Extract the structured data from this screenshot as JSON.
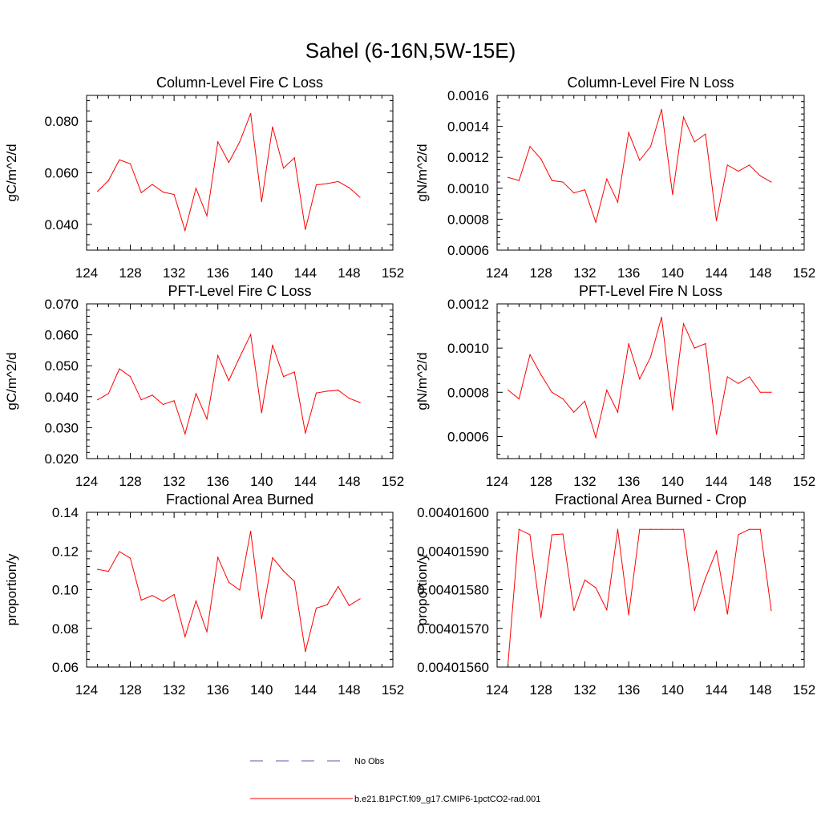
{
  "figure": {
    "title": "Sahel (6-16N,5W-15E)",
    "legend": [
      {
        "label": "No Obs",
        "color": "#5a5ab4",
        "style": "dashed"
      },
      {
        "label": "b.e21.B1PCT.f09_g17.CMIP6-1pctCO2-rad.001",
        "color": "#ff0000",
        "style": "solid"
      }
    ]
  },
  "chart_data": [
    {
      "type": "line",
      "title": "Column-Level Fire C Loss",
      "ylabel": "gC/m^2/d",
      "xlim": [
        124,
        152
      ],
      "ylim": [
        0.03,
        0.09
      ],
      "xticks": [
        "124",
        "128",
        "132",
        "136",
        "140",
        "144",
        "148",
        "152"
      ],
      "yticks": [
        "0.040",
        "0.060",
        "0.080"
      ],
      "x": [
        125,
        126,
        127,
        128,
        129,
        130,
        131,
        132,
        133,
        134,
        135,
        136,
        137,
        138,
        139,
        140,
        141,
        142,
        143,
        144,
        145,
        146,
        147,
        148,
        149
      ],
      "series": [
        {
          "color": "#ff0000",
          "values": [
            0.0528,
            0.057,
            0.065,
            0.0635,
            0.0523,
            0.0555,
            0.0525,
            0.0516,
            0.0376,
            0.054,
            0.0433,
            0.072,
            0.064,
            0.072,
            0.083,
            0.0488,
            0.0778,
            0.0618,
            0.0658,
            0.038,
            0.0553,
            0.0558,
            0.0566,
            0.0542,
            0.0505
          ]
        }
      ]
    },
    {
      "type": "line",
      "title": "Column-Level Fire N Loss",
      "ylabel": "gN/m^2/d",
      "xlim": [
        124,
        152
      ],
      "ylim": [
        0.0006,
        0.0016
      ],
      "xticks": [
        "124",
        "128",
        "132",
        "136",
        "140",
        "144",
        "148",
        "152"
      ],
      "yticks": [
        "0.0006",
        "0.0008",
        "0.0010",
        "0.0012",
        "0.0014",
        "0.0016"
      ],
      "x": [
        125,
        126,
        127,
        128,
        129,
        130,
        131,
        132,
        133,
        134,
        135,
        136,
        137,
        138,
        139,
        140,
        141,
        142,
        143,
        144,
        145,
        146,
        147,
        148,
        149
      ],
      "series": [
        {
          "color": "#ff0000",
          "values": [
            0.00107,
            0.00105,
            0.00127,
            0.00119,
            0.00105,
            0.00104,
            0.00097,
            0.00099,
            0.00078,
            0.00106,
            0.00091,
            0.00136,
            0.00118,
            0.00127,
            0.00151,
            0.00096,
            0.00146,
            0.0013,
            0.00135,
            0.00079,
            0.00115,
            0.00111,
            0.00115,
            0.00108,
            0.00104
          ]
        }
      ]
    },
    {
      "type": "line",
      "title": "PFT-Level Fire C Loss",
      "ylabel": "gC/m^2/d",
      "xlim": [
        124,
        152
      ],
      "ylim": [
        0.02,
        0.07
      ],
      "xticks": [
        "124",
        "128",
        "132",
        "136",
        "140",
        "144",
        "148",
        "152"
      ],
      "yticks": [
        "0.020",
        "0.030",
        "0.040",
        "0.050",
        "0.060",
        "0.070"
      ],
      "x": [
        125,
        126,
        127,
        128,
        129,
        130,
        131,
        132,
        133,
        134,
        135,
        136,
        137,
        138,
        139,
        140,
        141,
        142,
        143,
        144,
        145,
        146,
        147,
        148,
        149
      ],
      "series": [
        {
          "color": "#ff0000",
          "values": [
            0.039,
            0.041,
            0.049,
            0.0465,
            0.039,
            0.0405,
            0.0375,
            0.0387,
            0.028,
            0.041,
            0.0328,
            0.0533,
            0.0452,
            0.0528,
            0.0601,
            0.0348,
            0.0567,
            0.0465,
            0.048,
            0.0282,
            0.0412,
            0.0418,
            0.0421,
            0.0395,
            0.0381
          ]
        }
      ]
    },
    {
      "type": "line",
      "title": "PFT-Level Fire N Loss",
      "ylabel": "gN/m^2/d",
      "xlim": [
        124,
        152
      ],
      "ylim": [
        0.0005,
        0.0012
      ],
      "xticks": [
        "124",
        "128",
        "132",
        "136",
        "140",
        "144",
        "148",
        "152"
      ],
      "yticks": [
        "0.0006",
        "0.0008",
        "0.0010",
        "0.0012"
      ],
      "x": [
        125,
        126,
        127,
        128,
        129,
        130,
        131,
        132,
        133,
        134,
        135,
        136,
        137,
        138,
        139,
        140,
        141,
        142,
        143,
        144,
        145,
        146,
        147,
        148,
        149
      ],
      "series": [
        {
          "color": "#ff0000",
          "values": [
            0.00081,
            0.00077,
            0.00097,
            0.00088,
            0.0008,
            0.00077,
            0.00071,
            0.00076,
            0.000595,
            0.00081,
            0.00071,
            0.00102,
            0.00086,
            0.00096,
            0.00114,
            0.00072,
            0.00111,
            0.001,
            0.00102,
            0.00061,
            0.00087,
            0.00084,
            0.00087,
            0.0008,
            0.0008
          ]
        }
      ]
    },
    {
      "type": "line",
      "title": "Fractional Area Burned",
      "ylabel": "proportion/y",
      "xlim": [
        124,
        152
      ],
      "ylim": [
        0.06,
        0.14
      ],
      "xticks": [
        "124",
        "128",
        "132",
        "136",
        "140",
        "144",
        "148",
        "152"
      ],
      "yticks": [
        "0.06",
        "0.08",
        "0.10",
        "0.12",
        "0.14"
      ],
      "x": [
        125,
        126,
        127,
        128,
        129,
        130,
        131,
        132,
        133,
        134,
        135,
        136,
        137,
        138,
        139,
        140,
        141,
        142,
        143,
        144,
        145,
        146,
        147,
        148,
        149
      ],
      "series": [
        {
          "color": "#ff0000",
          "values": [
            0.1105,
            0.1095,
            0.1197,
            0.1163,
            0.0946,
            0.097,
            0.094,
            0.0975,
            0.0757,
            0.0942,
            0.0782,
            0.1167,
            0.1038,
            0.0998,
            0.1302,
            0.085,
            0.1165,
            0.1097,
            0.1043,
            0.068,
            0.0905,
            0.0922,
            0.1016,
            0.0918,
            0.0953
          ]
        }
      ]
    },
    {
      "type": "line",
      "title": "Fractional Area Burned - Crop",
      "ylabel": "proportion/y",
      "xlim": [
        124,
        152
      ],
      "ylim": [
        0.0040156,
        0.004016
      ],
      "xticks": [
        "124",
        "128",
        "132",
        "136",
        "140",
        "144",
        "148",
        "152"
      ],
      "yticks": [
        "0.00401560",
        "0.00401570",
        "0.00401580",
        "0.00401590",
        "0.00401600"
      ],
      "x": [
        125,
        126,
        127,
        128,
        129,
        130,
        131,
        132,
        133,
        134,
        135,
        136,
        137,
        138,
        139,
        140,
        141,
        142,
        143,
        144,
        145,
        146,
        147,
        148,
        149
      ],
      "series": [
        {
          "color": "#ff0000",
          "values": [
            0.00401561,
            0.004015956,
            0.004015942,
            0.004015728,
            0.004015942,
            0.004015944,
            0.004015746,
            0.004015825,
            0.004015805,
            0.004015748,
            0.004015956,
            0.004015735,
            0.004015956,
            0.004015956,
            0.004015956,
            0.004015956,
            0.004015956,
            0.004015746,
            0.00401583,
            0.0040159,
            0.004015737,
            0.004015942,
            0.004015956,
            0.004015956,
            0.004015746
          ]
        }
      ]
    }
  ]
}
